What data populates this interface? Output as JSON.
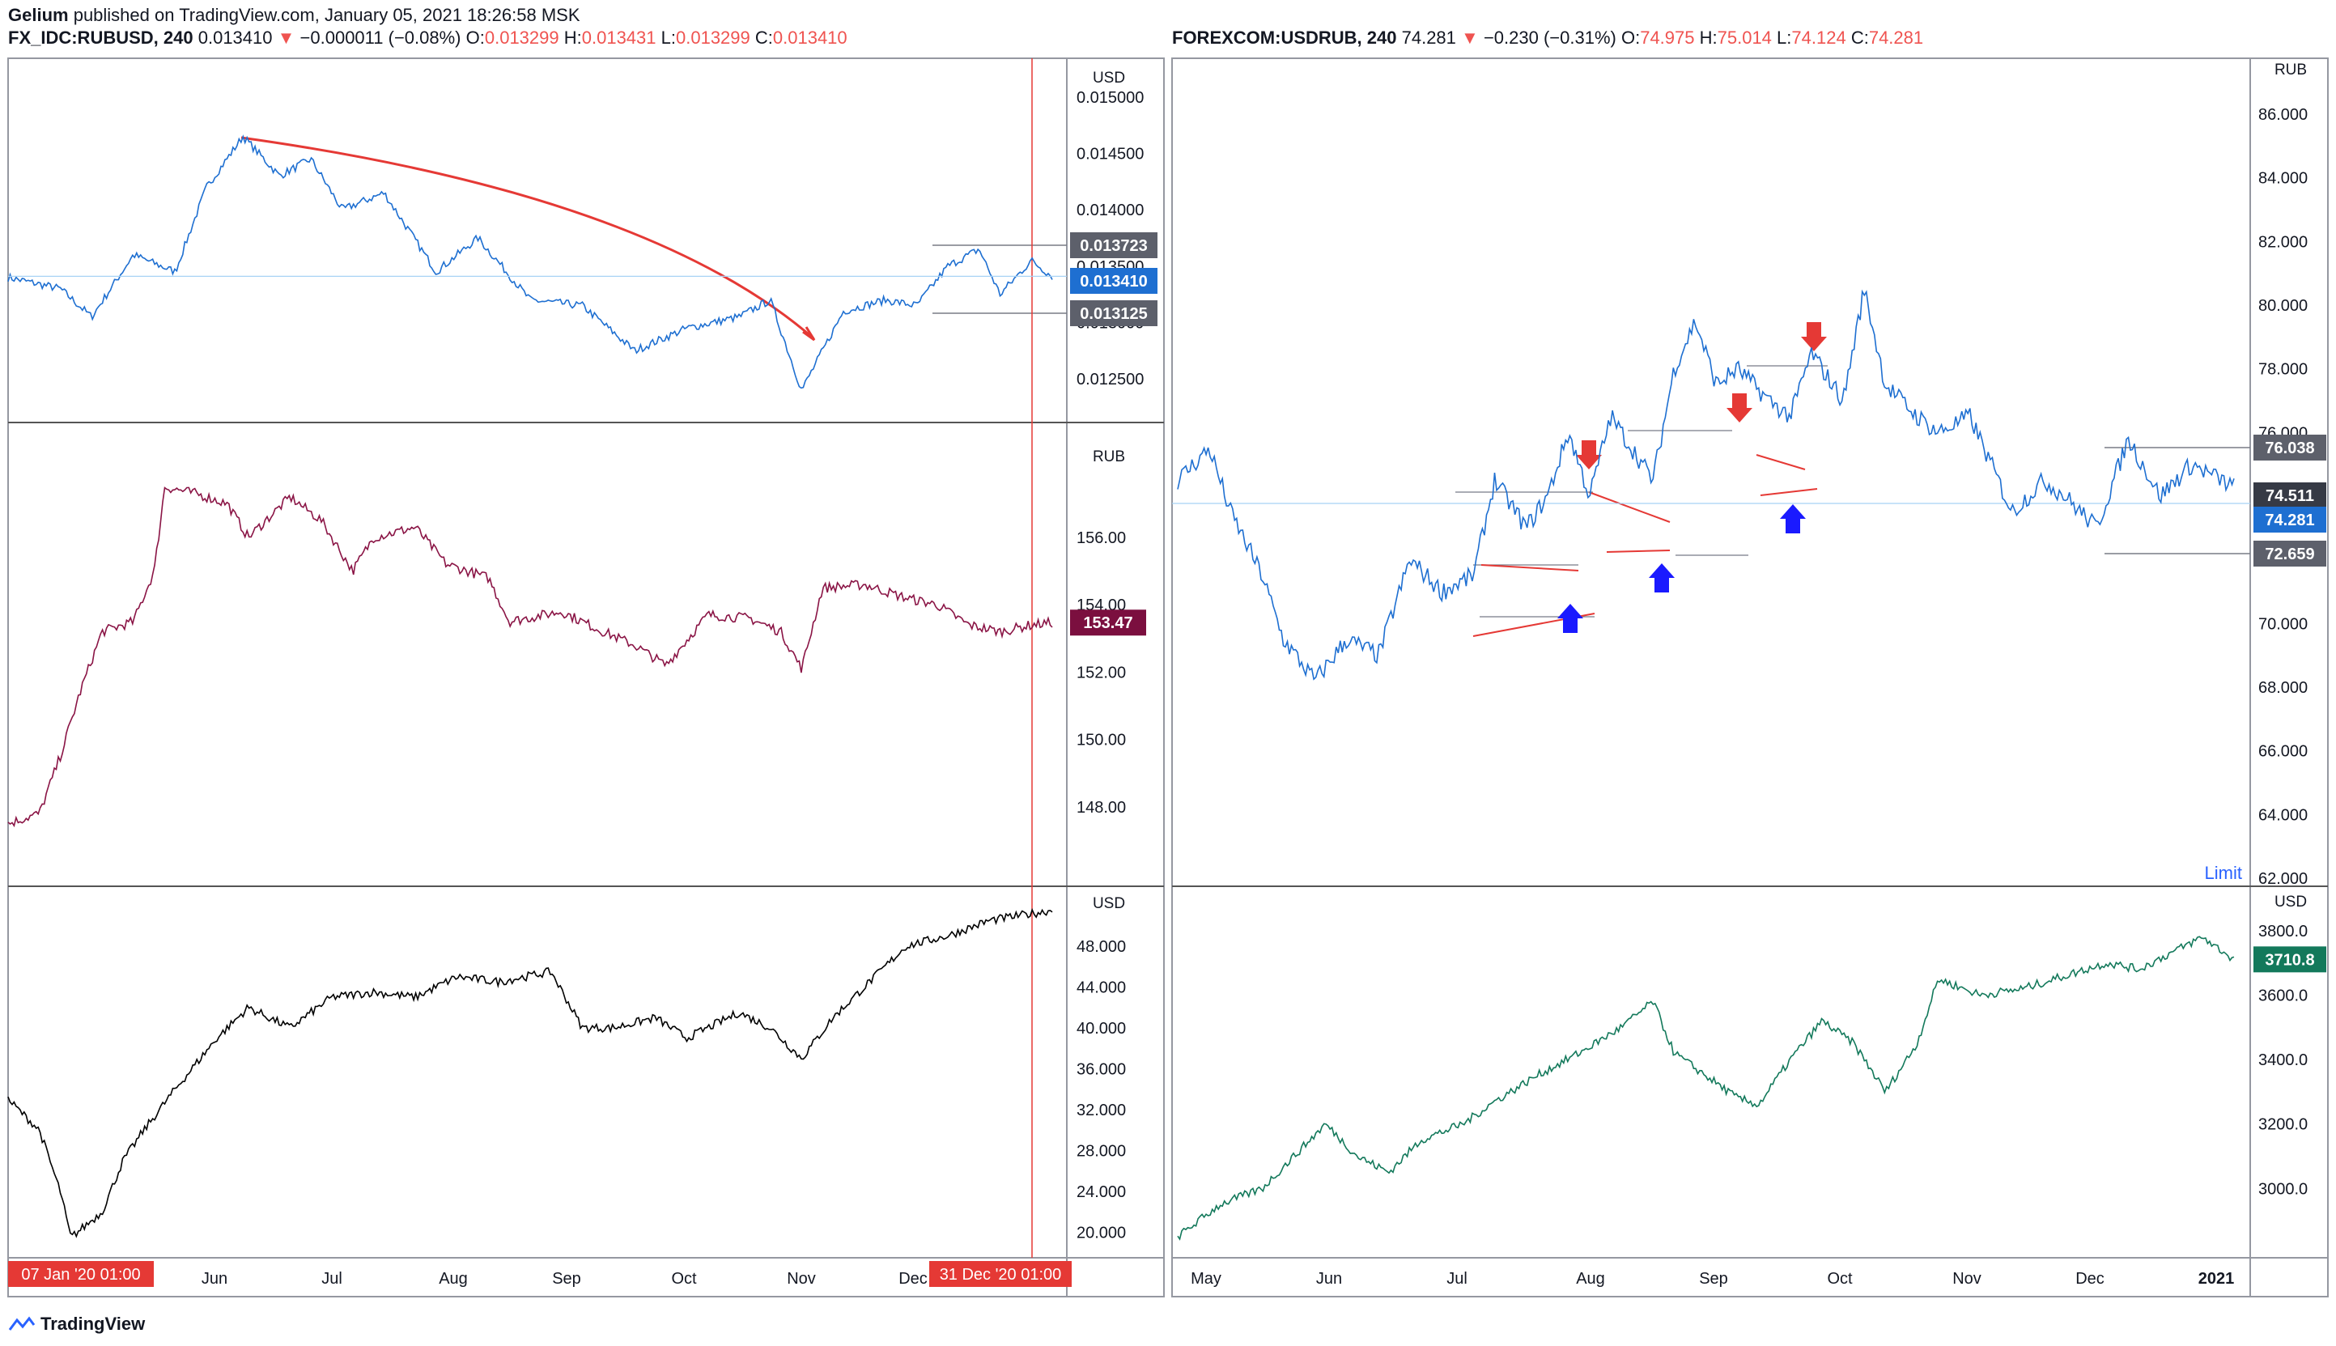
{
  "header": {
    "author": "Gelium",
    "published_text": "published on TradingView.com, January 05, 2021 18:26:58 MSK"
  },
  "left_panel": {
    "symbol": "FX_IDC:RUBUSD, 240",
    "last": "0.013410",
    "change": "−0.000011 (−0.08%)",
    "o_label": "O:",
    "o": "0.013299",
    "h_label": "H:",
    "h": "0.013431",
    "l_label": "L:",
    "l": "0.013299",
    "c_label": "C:",
    "c": "0.013410"
  },
  "right_panel": {
    "symbol": "FOREXCOM:USDRUB, 240",
    "last": "74.281",
    "change": "−0.230 (−0.31%)",
    "o_label": "O:",
    "o": "74.975",
    "h_label": "H:",
    "h": "75.014",
    "l_label": "L:",
    "l": "74.124",
    "c_label": "C:",
    "c": "74.281"
  },
  "footer": {
    "brand": "TradingView"
  },
  "colors": {
    "blue_series": "#1e6fd1",
    "maroon_series": "#8a1445",
    "black_series": "#000000",
    "teal_series": "#13795b",
    "red_annotation": "#e53935",
    "blue_arrow": "#1a1aff"
  },
  "chart_data": [
    {
      "id": "rubusd",
      "type": "line",
      "unit_label": "USD",
      "ticks": [
        "0.015000",
        "0.014500",
        "0.014000",
        "0.013500",
        "0.013000",
        "0.012500"
      ],
      "ylim": [
        0.0122,
        0.0152
      ],
      "level_labels": [
        "0.013723",
        "0.013410",
        "0.013125"
      ],
      "current_value": 0.01341,
      "x_labels": [
        "Jun",
        "Jul",
        "Aug",
        "Sep",
        "Oct",
        "Nov",
        "Dec"
      ],
      "x_start_label": "07 Jan '20   01:00",
      "x_end_label": "31 Dec '20   01:00",
      "series_points": [
        [
          0.0,
          0.0134
        ],
        [
          0.05,
          0.0133
        ],
        [
          0.08,
          0.01305
        ],
        [
          0.12,
          0.0136
        ],
        [
          0.16,
          0.01345
        ],
        [
          0.19,
          0.0142
        ],
        [
          0.225,
          0.01465
        ],
        [
          0.26,
          0.0143
        ],
        [
          0.29,
          0.01445
        ],
        [
          0.32,
          0.014
        ],
        [
          0.36,
          0.01415
        ],
        [
          0.41,
          0.01345
        ],
        [
          0.45,
          0.01375
        ],
        [
          0.5,
          0.0132
        ],
        [
          0.55,
          0.01315
        ],
        [
          0.6,
          0.01275
        ],
        [
          0.65,
          0.01295
        ],
        [
          0.7,
          0.01305
        ],
        [
          0.73,
          0.0132
        ],
        [
          0.76,
          0.0124
        ],
        [
          0.8,
          0.0131
        ],
        [
          0.84,
          0.0132
        ],
        [
          0.87,
          0.01315
        ],
        [
          0.9,
          0.0135
        ],
        [
          0.93,
          0.01365
        ],
        [
          0.95,
          0.01325
        ],
        [
          0.98,
          0.01355
        ],
        [
          1.0,
          0.01341
        ]
      ]
    },
    {
      "id": "maroon-series",
      "type": "line",
      "unit_label": "RUB",
      "ticks": [
        "156.00",
        "154.00",
        "153.47",
        "152.00",
        "150.00",
        "148.00"
      ],
      "ylim": [
        146.0,
        158.5
      ],
      "current_value": 153.47,
      "series_points": [
        [
          0.0,
          147.5
        ],
        [
          0.03,
          147.8
        ],
        [
          0.05,
          149.5
        ],
        [
          0.07,
          151.5
        ],
        [
          0.09,
          153.2
        ],
        [
          0.12,
          153.5
        ],
        [
          0.14,
          155.0
        ],
        [
          0.15,
          157.5
        ],
        [
          0.18,
          157.3
        ],
        [
          0.21,
          157.0
        ],
        [
          0.23,
          156.0
        ],
        [
          0.27,
          157.2
        ],
        [
          0.3,
          156.5
        ],
        [
          0.33,
          155.0
        ],
        [
          0.35,
          156.0
        ],
        [
          0.39,
          156.3
        ],
        [
          0.42,
          155.2
        ],
        [
          0.46,
          154.8
        ],
        [
          0.48,
          153.5
        ],
        [
          0.53,
          153.8
        ],
        [
          0.57,
          153.2
        ],
        [
          0.6,
          152.8
        ],
        [
          0.63,
          152.2
        ],
        [
          0.67,
          153.7
        ],
        [
          0.71,
          153.6
        ],
        [
          0.74,
          153.2
        ],
        [
          0.76,
          152.1
        ],
        [
          0.78,
          154.5
        ],
        [
          0.82,
          154.6
        ],
        [
          0.86,
          154.2
        ],
        [
          0.89,
          154.0
        ],
        [
          0.92,
          153.4
        ],
        [
          0.95,
          153.2
        ],
        [
          0.98,
          153.4
        ],
        [
          1.0,
          153.47
        ]
      ]
    },
    {
      "id": "black-series",
      "type": "line",
      "unit_label": "USD",
      "ticks": [
        "48.000",
        "44.000",
        "40.000",
        "36.000",
        "32.000",
        "28.000",
        "24.000",
        "20.000"
      ],
      "ylim": [
        18.0,
        52.5
      ],
      "series_points": [
        [
          0.0,
          33.0
        ],
        [
          0.03,
          30.0
        ],
        [
          0.05,
          24.0
        ],
        [
          0.06,
          19.5
        ],
        [
          0.09,
          22.0
        ],
        [
          0.11,
          27.0
        ],
        [
          0.13,
          30.0
        ],
        [
          0.16,
          34.0
        ],
        [
          0.2,
          39.0
        ],
        [
          0.23,
          42.0
        ],
        [
          0.27,
          40.0
        ],
        [
          0.31,
          43.0
        ],
        [
          0.35,
          43.5
        ],
        [
          0.39,
          43.0
        ],
        [
          0.43,
          45.0
        ],
        [
          0.47,
          44.5
        ],
        [
          0.52,
          45.5
        ],
        [
          0.55,
          40.0
        ],
        [
          0.58,
          40.0
        ],
        [
          0.62,
          41.0
        ],
        [
          0.65,
          39.0
        ],
        [
          0.7,
          41.5
        ],
        [
          0.73,
          40.0
        ],
        [
          0.76,
          37.0
        ],
        [
          0.79,
          41.0
        ],
        [
          0.83,
          45.0
        ],
        [
          0.86,
          48.0
        ],
        [
          0.9,
          49.0
        ],
        [
          0.94,
          50.5
        ],
        [
          0.97,
          51.0
        ],
        [
          1.0,
          51.5
        ]
      ]
    },
    {
      "id": "usdrub",
      "type": "line",
      "unit_label": "RUB",
      "ticks": [
        "86.000",
        "84.000",
        "82.000",
        "80.000",
        "78.000",
        "76.000",
        "74.000",
        "72.000",
        "70.000",
        "68.000",
        "66.000",
        "64.000",
        "62.000"
      ],
      "ylim": [
        62.0,
        87.5
      ],
      "level_labels": [
        "76.038",
        "74.511",
        "74.281",
        "72.659"
      ],
      "current_value": 74.281,
      "limit_label": "Limit",
      "x_labels": [
        "May",
        "Jun",
        "Jul",
        "Aug",
        "Sep",
        "Oct",
        "Nov",
        "Dec",
        "2021"
      ],
      "series_points": [
        [
          0.0,
          74.5
        ],
        [
          0.03,
          75.5
        ],
        [
          0.05,
          73.5
        ],
        [
          0.08,
          71.5
        ],
        [
          0.1,
          69.5
        ],
        [
          0.13,
          68.2
        ],
        [
          0.16,
          69.5
        ],
        [
          0.19,
          69.0
        ],
        [
          0.22,
          72.0
        ],
        [
          0.25,
          71.0
        ],
        [
          0.28,
          71.5
        ],
        [
          0.3,
          74.5
        ],
        [
          0.33,
          73.0
        ],
        [
          0.35,
          74.0
        ],
        [
          0.37,
          76.0
        ],
        [
          0.39,
          74.0
        ],
        [
          0.41,
          76.5
        ],
        [
          0.43,
          75.5
        ],
        [
          0.45,
          74.5
        ],
        [
          0.47,
          78.0
        ],
        [
          0.49,
          79.5
        ],
        [
          0.51,
          77.5
        ],
        [
          0.53,
          78.0
        ],
        [
          0.56,
          77.0
        ],
        [
          0.58,
          76.5
        ],
        [
          0.6,
          78.5
        ],
        [
          0.63,
          77.0
        ],
        [
          0.65,
          80.5
        ],
        [
          0.67,
          77.5
        ],
        [
          0.7,
          76.5
        ],
        [
          0.72,
          76.0
        ],
        [
          0.75,
          76.5
        ],
        [
          0.77,
          75.0
        ],
        [
          0.79,
          73.5
        ],
        [
          0.82,
          74.5
        ],
        [
          0.84,
          74.0
        ],
        [
          0.87,
          73.0
        ],
        [
          0.9,
          75.8
        ],
        [
          0.93,
          74.0
        ],
        [
          0.96,
          75.0
        ],
        [
          1.0,
          74.28
        ]
      ]
    },
    {
      "id": "teal-series",
      "type": "line",
      "unit_label": "USD",
      "ticks": [
        "3800.0",
        "3600.0",
        "3400.0",
        "3200.0",
        "3000.0"
      ],
      "ylim": [
        2800.0,
        3900.0
      ],
      "current_value": 3710.8,
      "series_points": [
        [
          0.0,
          2850.0
        ],
        [
          0.04,
          2950.0
        ],
        [
          0.08,
          3000.0
        ],
        [
          0.11,
          3100.0
        ],
        [
          0.14,
          3200.0
        ],
        [
          0.17,
          3100.0
        ],
        [
          0.2,
          3050.0
        ],
        [
          0.23,
          3150.0
        ],
        [
          0.27,
          3200.0
        ],
        [
          0.3,
          3270.0
        ],
        [
          0.34,
          3350.0
        ],
        [
          0.38,
          3420.0
        ],
        [
          0.42,
          3500.0
        ],
        [
          0.45,
          3580.0
        ],
        [
          0.47,
          3420.0
        ],
        [
          0.5,
          3350.0
        ],
        [
          0.53,
          3280.0
        ],
        [
          0.55,
          3260.0
        ],
        [
          0.58,
          3400.0
        ],
        [
          0.61,
          3520.0
        ],
        [
          0.64,
          3450.0
        ],
        [
          0.67,
          3300.0
        ],
        [
          0.7,
          3450.0
        ],
        [
          0.72,
          3650.0
        ],
        [
          0.76,
          3600.0
        ],
        [
          0.8,
          3620.0
        ],
        [
          0.84,
          3660.0
        ],
        [
          0.88,
          3700.0
        ],
        [
          0.91,
          3680.0
        ],
        [
          0.94,
          3730.0
        ],
        [
          0.97,
          3780.0
        ],
        [
          1.0,
          3710.8
        ]
      ]
    }
  ]
}
